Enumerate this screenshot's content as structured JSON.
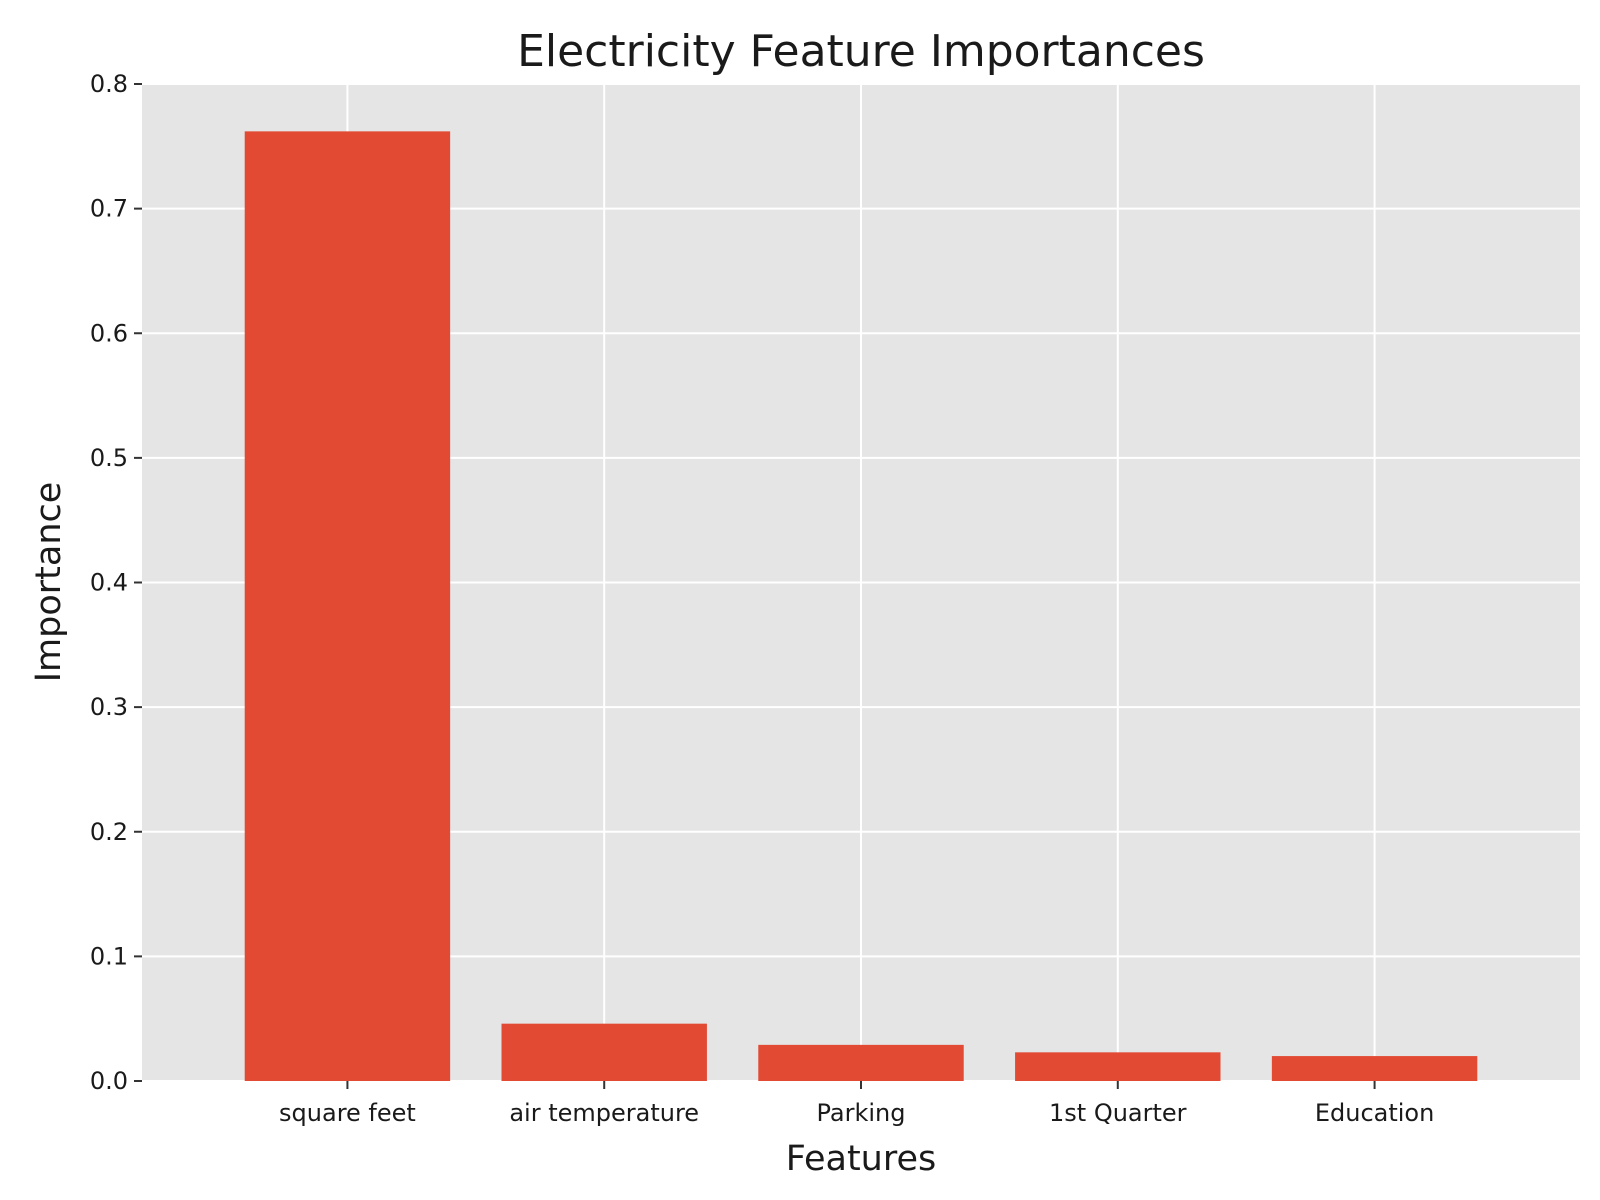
{
  "chart_data": {
    "type": "bar",
    "title": "Electricity Feature Importances",
    "xlabel": "Features",
    "ylabel": "Importance",
    "categories": [
      "square feet",
      "air temperature",
      "Parking",
      "1st Quarter",
      "Education"
    ],
    "values": [
      0.762,
      0.046,
      0.029,
      0.023,
      0.02
    ],
    "ylim": [
      0,
      0.8
    ],
    "yticks": [
      0.0,
      0.1,
      0.2,
      0.3,
      0.4,
      0.5,
      0.6,
      0.7,
      0.8
    ],
    "ytick_labels": [
      "0.0",
      "0.1",
      "0.2",
      "0.3",
      "0.4",
      "0.5",
      "0.6",
      "0.7",
      "0.8"
    ],
    "grid": true,
    "bar_color": "#e24a33",
    "plot_background": "#e5e5e5",
    "grid_color": "#ffffff"
  }
}
